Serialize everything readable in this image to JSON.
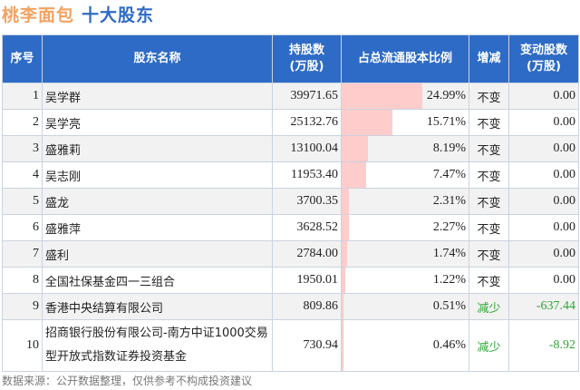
{
  "title": {
    "company": "桃李面包",
    "subject": "十大股东"
  },
  "headers": [
    "序号",
    "股东名称",
    "持股数\n(万股)",
    "占总流通股本比例",
    "增减",
    "变动股数\n(万股)"
  ],
  "rows": [
    {
      "no": "1",
      "name": "吴学群",
      "shares": "39971.65",
      "pct": 24.99,
      "pct_label": "24.99%",
      "change": "不变",
      "delta": "0.00"
    },
    {
      "no": "2",
      "name": "吴学亮",
      "shares": "25132.76",
      "pct": 15.71,
      "pct_label": "15.71%",
      "change": "不变",
      "delta": "0.00"
    },
    {
      "no": "3",
      "name": "盛雅莉",
      "shares": "13100.04",
      "pct": 8.19,
      "pct_label": "8.19%",
      "change": "不变",
      "delta": "0.00"
    },
    {
      "no": "4",
      "name": "吴志刚",
      "shares": "11953.40",
      "pct": 7.47,
      "pct_label": "7.47%",
      "change": "不变",
      "delta": "0.00"
    },
    {
      "no": "5",
      "name": "盛龙",
      "shares": "3700.35",
      "pct": 2.31,
      "pct_label": "2.31%",
      "change": "不变",
      "delta": "0.00"
    },
    {
      "no": "6",
      "name": "盛雅萍",
      "shares": "3628.52",
      "pct": 2.27,
      "pct_label": "2.27%",
      "change": "不变",
      "delta": "0.00"
    },
    {
      "no": "7",
      "name": "盛利",
      "shares": "2784.00",
      "pct": 1.74,
      "pct_label": "1.74%",
      "change": "不变",
      "delta": "0.00"
    },
    {
      "no": "8",
      "name": "全国社保基金四一三组合",
      "shares": "1950.01",
      "pct": 1.22,
      "pct_label": "1.22%",
      "change": "不变",
      "delta": "0.00"
    },
    {
      "no": "9",
      "name": "香港中央结算有限公司",
      "shares": "809.86",
      "pct": 0.51,
      "pct_label": "0.51%",
      "change": "减少",
      "delta": "-637.44"
    },
    {
      "no": "10",
      "name": "招商银行股份有限公司-南方中证1000交易型开放式指数证券投资基金",
      "shares": "730.94",
      "pct": 0.46,
      "pct_label": "0.46%",
      "change": "减少",
      "delta": "-8.92"
    }
  ],
  "colors": {
    "header_bg": "#2e6bc6",
    "bar": "#ffcccc",
    "decrease": "#2aa532",
    "title_company": "#f4a261",
    "title_subject": "#2e6bc6"
  },
  "footer": "数据来源：公开数据整理，仅供参考不构成投资建议"
}
